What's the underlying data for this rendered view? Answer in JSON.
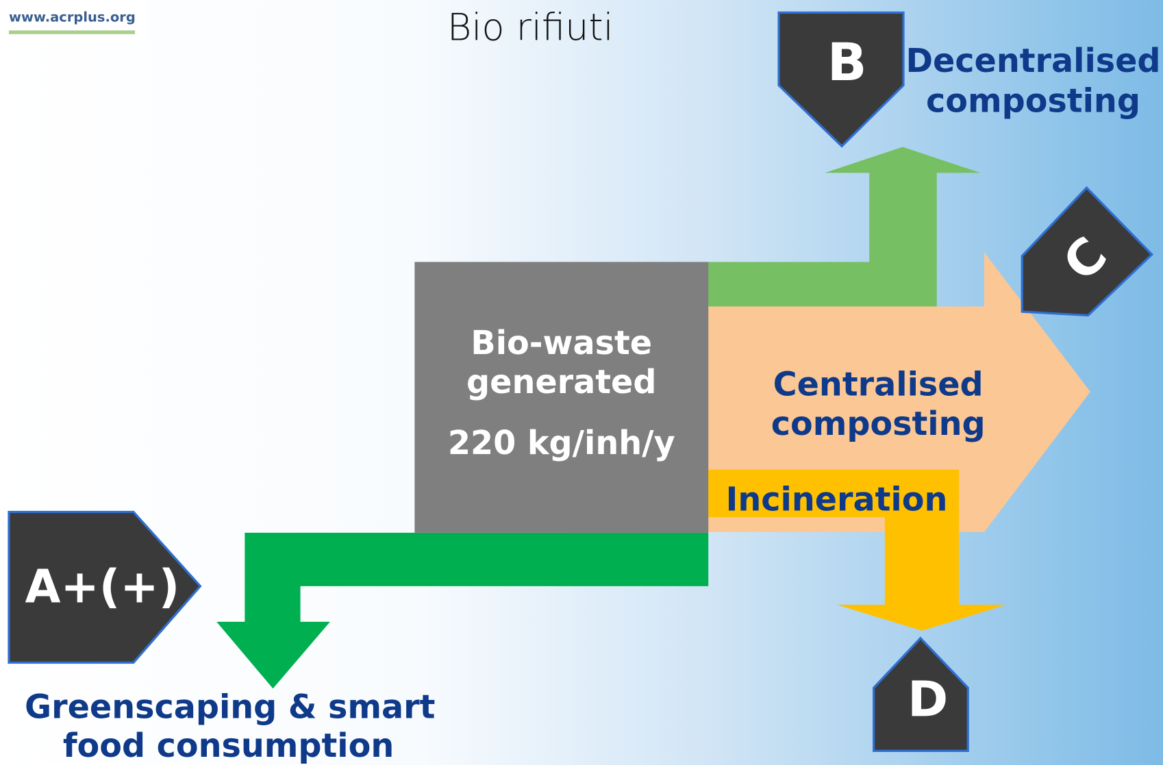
{
  "source_url": "www.acrplus.org",
  "title": "Bio rifiuti",
  "center": {
    "lines": [
      "Bio-waste",
      "generated"
    ],
    "amount": "220 kg/inh/y"
  },
  "options": [
    {
      "code": "A+(+)",
      "label_lines": [
        "Greenscaping  & smart",
        "food consumption"
      ]
    },
    {
      "code": "B",
      "label_lines": [
        "Decentralised",
        "composting"
      ]
    },
    {
      "code": "C",
      "label_lines": [
        "Centralised",
        "composting"
      ]
    },
    {
      "code": "D",
      "label_lines": [
        "Incineration"
      ]
    }
  ]
}
